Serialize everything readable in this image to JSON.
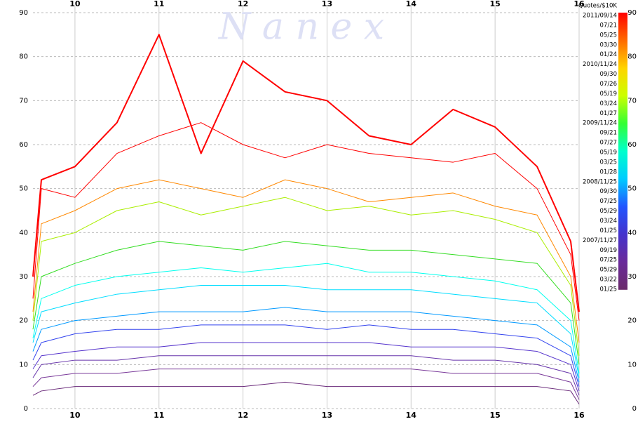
{
  "chart_data": {
    "type": "line",
    "watermark": "N a n e x",
    "colorbar_title": "Quotes/$10K",
    "date_labels": [
      "2011/09/14",
      "07/21",
      "05/25",
      "03/30",
      "01/24",
      "2010/11/24",
      "09/30",
      "07/26",
      "05/19",
      "03/24",
      "01/27",
      "2009/11/24",
      "09/21",
      "07/27",
      "05/19",
      "03/25",
      "01/28",
      "2008/11/25",
      "09/30",
      "07/25",
      "05/29",
      "03/24",
      "01/25",
      "2007/11/27",
      "09/19",
      "07/25",
      "05/29",
      "03/22",
      "01/25"
    ],
    "colorbar": {
      "range": [
        27,
        90
      ],
      "colors": [
        "#ff0000",
        "#ff6a00",
        "#ffd400",
        "#ccff00",
        "#33ff33",
        "#00ffcc",
        "#00ccff",
        "#2255ff",
        "#4433cc",
        "#6a2a9a",
        "#6a2a6a"
      ]
    },
    "xlim": [
      9.5,
      16
    ],
    "xticks": [
      10,
      11,
      12,
      13,
      14,
      15,
      16
    ],
    "ylim": [
      0,
      90
    ],
    "yticks": [
      0,
      10,
      20,
      30,
      40,
      50,
      60,
      70,
      80,
      90
    ],
    "grid": true,
    "x": [
      9.5,
      9.6,
      10,
      10.5,
      11,
      11.5,
      12,
      12.5,
      13,
      13.5,
      14,
      14.5,
      15,
      15.5,
      15.9,
      16
    ],
    "series": [
      {
        "color": "#ff0000",
        "width": 1,
        "values": [
          25,
          50,
          48,
          58,
          62,
          65,
          60,
          57,
          60,
          58,
          57,
          56,
          58,
          50,
          35,
          20
        ]
      },
      {
        "color": "#ff0000",
        "width": 2,
        "values": [
          30,
          52,
          55,
          65,
          85,
          58,
          79,
          72,
          70,
          62,
          60,
          68,
          64,
          55,
          38,
          22
        ]
      },
      {
        "color": "#ff8800",
        "width": 1,
        "values": [
          22,
          42,
          45,
          50,
          52,
          50,
          48,
          52,
          50,
          47,
          48,
          49,
          46,
          44,
          30,
          15
        ]
      },
      {
        "color": "#aaee00",
        "width": 1,
        "values": [
          20,
          38,
          40,
          45,
          47,
          44,
          46,
          48,
          45,
          46,
          44,
          45,
          43,
          40,
          28,
          12
        ]
      },
      {
        "color": "#33dd22",
        "width": 1,
        "values": [
          18,
          30,
          33,
          36,
          38,
          37,
          36,
          38,
          37,
          36,
          36,
          35,
          34,
          33,
          24,
          10
        ]
      },
      {
        "color": "#00ffee",
        "width": 1,
        "values": [
          16,
          25,
          28,
          30,
          31,
          32,
          31,
          32,
          33,
          31,
          31,
          30,
          29,
          27,
          20,
          8
        ]
      },
      {
        "color": "#00ddff",
        "width": 1,
        "values": [
          15,
          22,
          24,
          26,
          27,
          28,
          28,
          28,
          27,
          27,
          27,
          26,
          25,
          24,
          17,
          7
        ]
      },
      {
        "color": "#0099ff",
        "width": 1,
        "values": [
          13,
          18,
          20,
          21,
          22,
          22,
          22,
          23,
          22,
          22,
          22,
          21,
          20,
          19,
          14,
          6
        ]
      },
      {
        "color": "#3344ee",
        "width": 1,
        "values": [
          11,
          15,
          17,
          18,
          18,
          19,
          19,
          19,
          18,
          19,
          18,
          18,
          17,
          16,
          12,
          5
        ]
      },
      {
        "color": "#5533cc",
        "width": 1,
        "values": [
          9,
          12,
          13,
          14,
          14,
          15,
          15,
          15,
          15,
          15,
          14,
          14,
          14,
          13,
          10,
          4
        ]
      },
      {
        "color": "#6633aa",
        "width": 1,
        "values": [
          7,
          10,
          11,
          11,
          12,
          12,
          12,
          12,
          12,
          12,
          12,
          11,
          11,
          10,
          8,
          3
        ]
      },
      {
        "color": "#7a3a9a",
        "width": 1,
        "values": [
          5,
          7,
          8,
          8,
          9,
          9,
          9,
          9,
          9,
          9,
          9,
          8,
          8,
          8,
          6,
          2
        ]
      },
      {
        "color": "#6a2a7a",
        "width": 1,
        "values": [
          3,
          4,
          5,
          5,
          5,
          5,
          5,
          6,
          5,
          5,
          5,
          5,
          5,
          5,
          4,
          1
        ]
      }
    ]
  }
}
